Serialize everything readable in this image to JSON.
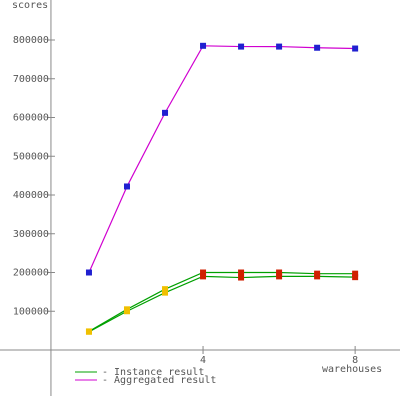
{
  "chart_data": {
    "type": "line",
    "y_label": "scores",
    "x_label": "warehouses",
    "x": [
      1,
      2,
      3,
      4,
      5,
      6,
      7,
      8
    ],
    "xlim": [
      -1.34,
      9.18
    ],
    "xticks": [
      4,
      8
    ],
    "ylim": [
      -100000,
      900000
    ],
    "yticks": [
      100000,
      200000,
      300000,
      400000,
      500000,
      600000,
      700000,
      800000
    ],
    "series": [
      {
        "name": "- Instance result",
        "color": "#00a000",
        "instances": [
          {
            "values": [
              48000,
              105000,
              157000,
              200000,
              200000,
              200000,
              197000,
              197000
            ],
            "marker_colors": [
              "#f0c000",
              "#f0c000",
              "#f0c000",
              "#d02000",
              "#d02000",
              "#d02000",
              "#d02000",
              "#d02000"
            ]
          },
          {
            "values": [
              47000,
              100000,
              148000,
              190000,
              187000,
              190000,
              190000,
              188000
            ],
            "marker_colors": [
              "#f0c000",
              "#f0c000",
              "#f0c000",
              "#d02000",
              "#d02000",
              "#d02000",
              "#d02000",
              "#d02000"
            ]
          }
        ]
      },
      {
        "name": "- Aggregated result",
        "color": "#d000d0",
        "values": [
          200000,
          422000,
          612000,
          785000,
          783000,
          783000,
          780000,
          778000
        ],
        "marker_color": "#2020d0"
      }
    ]
  }
}
